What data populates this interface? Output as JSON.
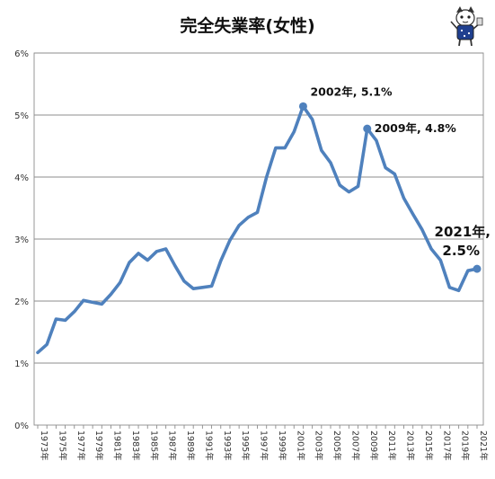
{
  "chart_data": {
    "type": "line",
    "title": "完全失業率(女性)",
    "xlabel": "",
    "ylabel": "",
    "ylim": [
      0,
      6
    ],
    "yticks": [
      "0%",
      "1%",
      "2%",
      "3%",
      "4%",
      "5%",
      "6%"
    ],
    "grid": true,
    "x": [
      "1973年",
      "1974年",
      "1975年",
      "1976年",
      "1977年",
      "1978年",
      "1979年",
      "1980年",
      "1981年",
      "1982年",
      "1983年",
      "1984年",
      "1985年",
      "1986年",
      "1987年",
      "1988年",
      "1989年",
      "1990年",
      "1991年",
      "1992年",
      "1993年",
      "1994年",
      "1995年",
      "1996年",
      "1997年",
      "1998年",
      "1999年",
      "2000年",
      "2001年",
      "2002年",
      "2003年",
      "2004年",
      "2005年",
      "2006年",
      "2007年",
      "2008年",
      "2009年",
      "2010年",
      "2011年",
      "2012年",
      "2013年",
      "2014年",
      "2015年",
      "2016年",
      "2017年",
      "2018年",
      "2019年",
      "2020年",
      "2021年"
    ],
    "xtick_labels": [
      "1973年",
      "1975年",
      "1977年",
      "1979年",
      "1981年",
      "1983年",
      "1985年",
      "1987年",
      "1989年",
      "1991年",
      "1993年",
      "1995年",
      "1997年",
      "1999年",
      "2001年",
      "2003年",
      "2005年",
      "2007年",
      "2009年",
      "2011年",
      "2013年",
      "2015年",
      "2017年",
      "2019年",
      "2021年"
    ],
    "series": [
      {
        "color": "#4f81bd",
        "values": [
          1.17,
          1.3,
          1.71,
          1.69,
          1.83,
          2.01,
          1.98,
          1.95,
          2.11,
          2.3,
          2.62,
          2.77,
          2.66,
          2.8,
          2.84,
          2.57,
          2.32,
          2.2,
          2.22,
          2.24,
          2.65,
          2.98,
          3.22,
          3.35,
          3.43,
          4.0,
          4.47,
          4.47,
          4.73,
          5.14,
          4.93,
          4.43,
          4.23,
          3.87,
          3.76,
          3.85,
          4.78,
          4.59,
          4.15,
          4.05,
          3.66,
          3.4,
          3.15,
          2.84,
          2.66,
          2.22,
          2.17,
          2.49,
          2.52
        ]
      }
    ],
    "annotations": [
      {
        "index": 29,
        "text": "2002年, 5.1%"
      },
      {
        "index": 36,
        "text": "2009年, 4.8%"
      },
      {
        "index": 48,
        "text_line1": "2021年,",
        "text_line2": "2.5%"
      }
    ]
  }
}
